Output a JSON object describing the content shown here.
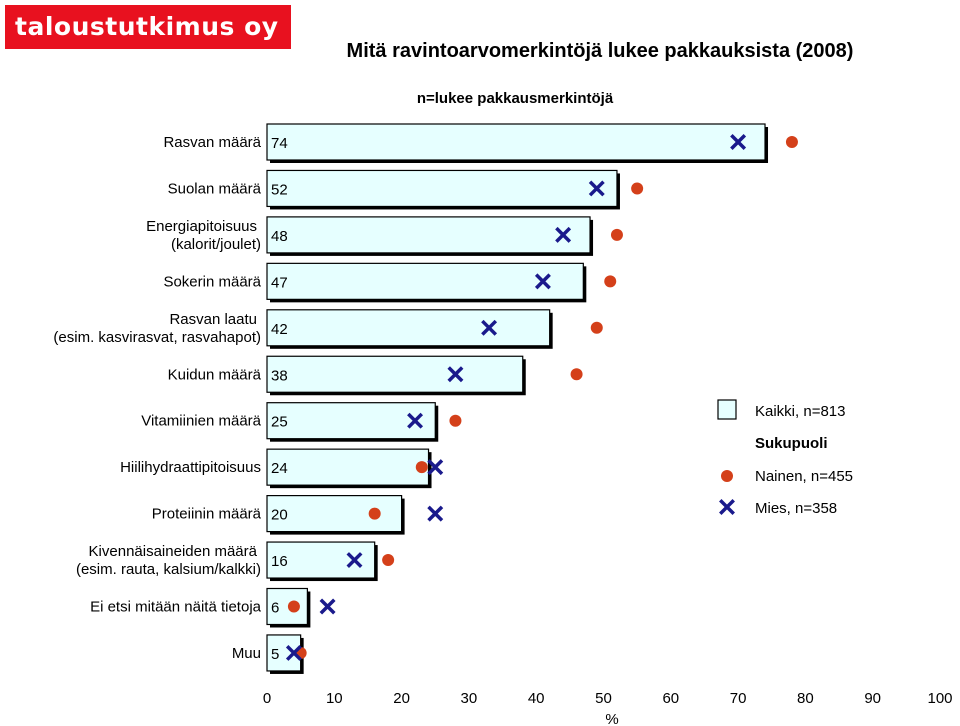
{
  "logo": {
    "text": "taloustutkimus oy"
  },
  "header": {
    "title": "Mitä ravintoarvomerkintöjä lukee pakkauksista (2008)",
    "subtitle": "n=lukee pakkausmerkintöjä"
  },
  "colors": {
    "bar_fill": "#e6ffff",
    "women": "#d4401a",
    "men": "#1a1a8c",
    "logo_bg": "#e8111f"
  },
  "chart_data": {
    "type": "bar",
    "orientation": "horizontal",
    "categories": [
      [
        "Rasvan määrä"
      ],
      [
        "Suolan määrä"
      ],
      [
        "Energiapitoisuus",
        "(kalorit/joulet)"
      ],
      [
        "Sokerin määrä"
      ],
      [
        "Rasvan laatu",
        "(esim. kasvirasvat, rasvahapot)"
      ],
      [
        "Kuidun määrä"
      ],
      [
        "Vitamiinien määrä"
      ],
      [
        "Hiilihydraattipitoisuus"
      ],
      [
        "Proteiinin määrä"
      ],
      [
        "Kivennäisaineiden määrä",
        "(esim. rauta, kalsium/kalkki)"
      ],
      [
        "Ei etsi mitään näitä tietoja"
      ],
      [
        "Muu"
      ]
    ],
    "series": [
      {
        "name": "Kaikki, n=813",
        "kind": "bar",
        "values": [
          74,
          52,
          48,
          47,
          42,
          38,
          25,
          24,
          20,
          16,
          6,
          5
        ]
      },
      {
        "name": "Nainen, n=455",
        "kind": "dot",
        "values": [
          78,
          55,
          52,
          51,
          49,
          46,
          28,
          23,
          16,
          18,
          4,
          5
        ]
      },
      {
        "name": "Mies, n=358",
        "kind": "cross",
        "values": [
          70,
          49,
          44,
          41,
          33,
          28,
          22,
          25,
          25,
          13,
          9,
          4
        ]
      }
    ],
    "legend_title": "Sukupuoli",
    "legend_position": "right",
    "xlim": [
      0,
      100
    ],
    "xticks": [
      "0",
      "10",
      "20",
      "30",
      "40",
      "50",
      "60",
      "70",
      "80",
      "90",
      "100"
    ],
    "xlabel": "%",
    "grid": false
  }
}
